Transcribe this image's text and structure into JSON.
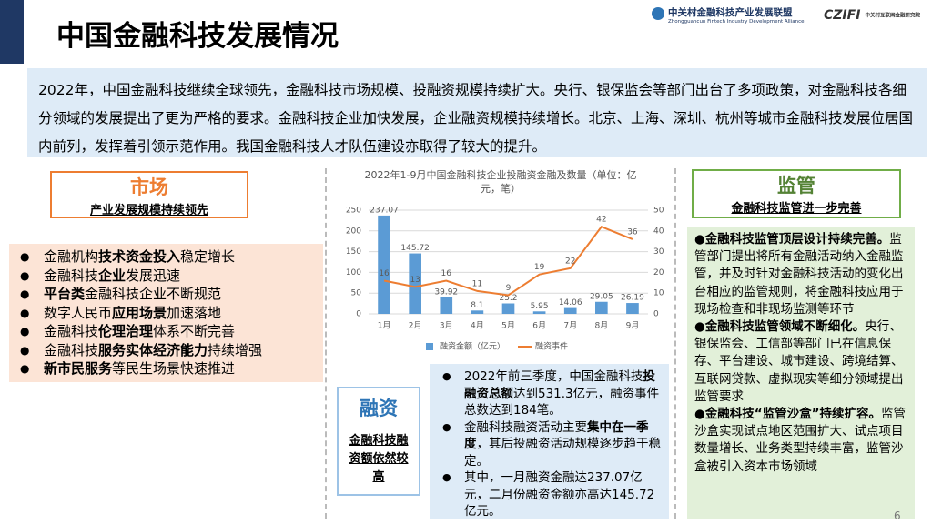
{
  "header": {
    "title": "中国金融科技发展情况",
    "org_name": "中关村金融科技产业发展联盟",
    "org_name_en": "Zhongguancun Fintech Industry Development Alliance",
    "logo2": "CZIFI",
    "logo2_name": "中关村互联网金融研究院"
  },
  "intro": "2022年，中国金融科技继续全球领先，金融科技市场规模、投融资规模持续扩大。央行、银保监会等部门出台了多项政策，对金融科技各细分领域的发展提出了更为严格的要求。金融科技企业加快发展，企业融资规模持续增长。北京、上海、深圳、杭州等城市金融科技发展位居国内前列，发挥着引领示范作用。我国金融科技人才队伍建设亦取得了较大的提升。",
  "market": {
    "title": "市场",
    "subtitle": "产业发展规模持续领先",
    "bullets": [
      [
        {
          "text": "金融机构",
          "bold": false
        },
        {
          "text": "技术资金投入",
          "bold": true
        },
        {
          "text": "稳定增长",
          "bold": false
        }
      ],
      [
        {
          "text": "金融科技",
          "bold": false
        },
        {
          "text": "企业",
          "bold": true
        },
        {
          "text": "发展迅速",
          "bold": false
        }
      ],
      [
        {
          "text": "平台类",
          "bold": true
        },
        {
          "text": "金融科技企业不断规范",
          "bold": false
        }
      ],
      [
        {
          "text": "数字人民币",
          "bold": false
        },
        {
          "text": "应用场景",
          "bold": true
        },
        {
          "text": "加速落地",
          "bold": false
        }
      ],
      [
        {
          "text": "金融科技",
          "bold": false
        },
        {
          "text": "伦理治理",
          "bold": true
        },
        {
          "text": "体系不断完善",
          "bold": false
        }
      ],
      [
        {
          "text": "金融科技",
          "bold": false
        },
        {
          "text": "服务实体经济能力",
          "bold": true
        },
        {
          "text": "持续增强",
          "bold": false
        }
      ],
      [
        {
          "text": "新市民服务",
          "bold": true
        },
        {
          "text": "等民生场景快速推进",
          "bold": false
        }
      ]
    ]
  },
  "chart_data": {
    "type": "bar_line",
    "title": "2022年1-9月中国金融科技企业投融资金融及数量（单位：亿元，笔）",
    "categories": [
      "1月",
      "2月",
      "3月",
      "4月",
      "5月",
      "6月",
      "7月",
      "8月",
      "9月"
    ],
    "series": [
      {
        "name": "融资金额（亿元）",
        "type": "bar",
        "color": "#5b9bd5",
        "values": [
          237.07,
          145.72,
          39.92,
          8.1,
          25.2,
          5.95,
          14.06,
          29.05,
          26.19
        ]
      },
      {
        "name": "融资事件",
        "type": "line",
        "axis": "y2",
        "color": "#ed7d31",
        "values": [
          16,
          13,
          16,
          11,
          9,
          19,
          22,
          42,
          36
        ]
      }
    ],
    "ylim": [
      0,
      250
    ],
    "yticks": [
      0,
      50,
      100,
      150,
      200,
      250
    ],
    "y2lim": [
      0,
      50
    ],
    "y2ticks": [
      0,
      10,
      20,
      30,
      40,
      50
    ],
    "grid": true,
    "legend": "bottom"
  },
  "finance": {
    "title": "融资",
    "subtitle": "金融科技融资额依然较高",
    "bullets": [
      [
        {
          "text": "2022年前三季度，中国金融科技",
          "bold": false
        },
        {
          "text": "投融资总额",
          "bold": true
        },
        {
          "text": "达到531.3亿元，融资事件总数达到184笔。",
          "bold": false
        }
      ],
      [
        {
          "text": "金融科技融资活动主要",
          "bold": false
        },
        {
          "text": "集中在一季度",
          "bold": true
        },
        {
          "text": "，其后投融资活动规模逐步趋于稳定。",
          "bold": false
        }
      ],
      [
        {
          "text": "其中，一月融资金融达237.07亿元，二月份融资金额亦高达145.72亿元。",
          "bold": false
        }
      ]
    ]
  },
  "regulation": {
    "title": "监管",
    "subtitle": "金融科技监管进一步完善",
    "paragraphs": [
      [
        {
          "text": "●金融科技监管顶层设计持续完善。",
          "bold": true
        },
        {
          "text": "监管部门提出将所有金融活动纳入金融监管，并及时针对金融科技活动的变化出台相应的监管规则，将金融科技应用于现场检查和非现场监测等环节",
          "bold": false
        }
      ],
      [
        {
          "text": "●金融科技监管领域不断细化。",
          "bold": true
        },
        {
          "text": "央行、银保监会、工信部等部门已在信息保存、平台建设、城市建设、跨境结算、互联网贷款、虚拟现实等细分领域提出监管要求",
          "bold": false
        }
      ],
      [
        {
          "text": "●金融科技“监管沙盒”持续扩容。",
          "bold": true
        },
        {
          "text": "监管沙盒实现试点地区范围扩大、试点项目数量增长、业务类型持续丰富，监管沙盒被引入资本市场领域",
          "bold": false
        }
      ]
    ]
  },
  "page_number": "6"
}
